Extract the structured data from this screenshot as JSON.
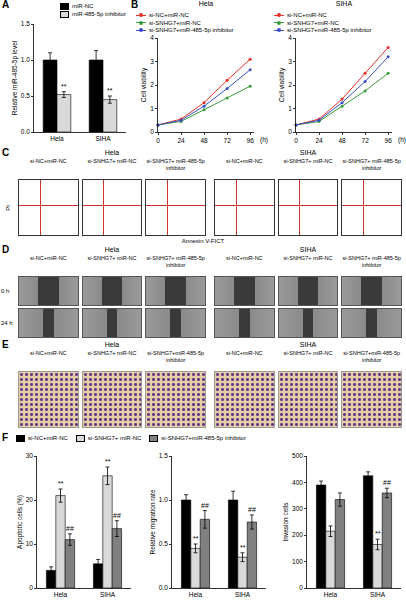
{
  "chart_data": [
    {
      "panel": "A",
      "type": "bar",
      "categories": [
        "Hela",
        "SIHA"
      ],
      "y_label": "Relative miR-485-5p level",
      "ylim": [
        0,
        1.5
      ],
      "yticks": [
        {
          "value": 0,
          "label": "0.0"
        },
        {
          "value": 0.5,
          "label": "0.5"
        },
        {
          "value": 1,
          "label": "1.0"
        },
        {
          "value": 1.5,
          "label": "1.5"
        }
      ],
      "grid": false,
      "legend": "top right",
      "series": [
        {
          "name": "miR-NC",
          "color": "#000000",
          "values": [
            1.0,
            1.0
          ],
          "errors": [
            0.1,
            0.13
          ],
          "annotations": [
            null,
            null
          ]
        },
        {
          "name": "miR-485-5p inhibitor",
          "color": "#d9d9d9",
          "values": [
            0.52,
            0.45
          ],
          "errors": [
            0.04,
            0.05
          ],
          "annotations": [
            "**",
            "**"
          ]
        }
      ]
    },
    {
      "panel": "B",
      "type": "line",
      "title": "Hela",
      "x": [
        0,
        24,
        48,
        72,
        96
      ],
      "x_label": "(h)",
      "y_label": "Cell viability",
      "xlim": [
        0,
        100
      ],
      "xticks": [
        0,
        24,
        48,
        72,
        96
      ],
      "ylim": [
        0,
        4
      ],
      "yticks": [
        0,
        1,
        2,
        3,
        4
      ],
      "grid": false,
      "legend": "top left",
      "marker": "circle",
      "series": [
        {
          "name": "si-NC+miR-NC",
          "color": "#e8302a",
          "values": [
            0.3,
            0.55,
            1.25,
            2.2,
            3.1
          ]
        },
        {
          "name": "si-SNHG7+miR-NC",
          "color": "#3a9b3a",
          "values": [
            0.3,
            0.45,
            0.95,
            1.45,
            1.95
          ]
        },
        {
          "name": "si-SNHG7+miR-485-5p inhibitor",
          "color": "#3b4fc4",
          "values": [
            0.3,
            0.5,
            1.1,
            1.85,
            2.65
          ]
        }
      ]
    },
    {
      "type": "line",
      "title": "SIHA",
      "x": [
        0,
        24,
        48,
        72,
        96
      ],
      "x_label": "(h)",
      "y_label": "Cell viability",
      "xlim": [
        0,
        100
      ],
      "xticks": [
        0,
        24,
        48,
        72,
        96
      ],
      "ylim": [
        0,
        4
      ],
      "yticks": [
        0,
        1,
        2,
        3,
        4
      ],
      "grid": false,
      "legend": "top left",
      "marker": "circle",
      "series": [
        {
          "name": "si-NC+miR-NC",
          "color": "#e8302a",
          "values": [
            0.3,
            0.55,
            1.4,
            2.5,
            3.6
          ]
        },
        {
          "name": "si-SNHG7+miR-NC",
          "color": "#3a9b3a",
          "values": [
            0.3,
            0.45,
            1.1,
            1.75,
            2.5
          ]
        },
        {
          "name": "si-SNHG7+miR-485-5p inhibitor",
          "color": "#3b4fc4",
          "values": [
            0.3,
            0.5,
            1.25,
            2.15,
            3.2
          ]
        }
      ]
    },
    {
      "panel": "F",
      "type": "bar",
      "categories": [
        "Hela",
        "SIHA"
      ],
      "grid": false,
      "legend": "top",
      "series": [
        {
          "name": "si-NC+miR-NC",
          "color": "#000000"
        },
        {
          "name": "si-SNHG7+ miR-NC",
          "color": "#d9d9d9"
        },
        {
          "name": "si-SNHG7+miR-485-5p inhibitor",
          "color": "#808080"
        }
      ],
      "subplots": [
        {
          "y_label": "Apoptotic cells (%)",
          "ylim": [
            0,
            30
          ],
          "yticks": [
            0,
            10,
            20,
            30
          ],
          "values": [
            [
              4,
              5.5
            ],
            [
              21,
              25.5
            ],
            [
              11,
              13.5
            ]
          ],
          "errors": [
            [
              0.8,
              1
            ],
            [
              1.5,
              2
            ],
            [
              1.3,
              1.8
            ]
          ],
          "annotations": [
            [
              null,
              null
            ],
            [
              "**",
              "**"
            ],
            [
              "##",
              "##"
            ]
          ]
        },
        {
          "y_label": "Relative migration rate",
          "ylim": [
            0,
            1.5
          ],
          "yticks": [
            {
              "value": 0,
              "label": "0.0"
            },
            {
              "value": 0.5,
              "label": "0.5"
            },
            {
              "value": 1,
              "label": "1.0"
            },
            {
              "value": 1.5,
              "label": "1.5"
            }
          ],
          "values": [
            [
              1.0,
              1.0
            ],
            [
              0.45,
              0.35
            ],
            [
              0.78,
              0.75
            ]
          ],
          "errors": [
            [
              0.06,
              0.1
            ],
            [
              0.05,
              0.05
            ],
            [
              0.1,
              0.08
            ]
          ],
          "annotations": [
            [
              null,
              null
            ],
            [
              "**",
              "**"
            ],
            [
              "##",
              "##"
            ]
          ]
        },
        {
          "y_label": "Invasion cells",
          "ylim": [
            0,
            500
          ],
          "yticks": [
            0,
            100,
            200,
            300,
            400,
            500
          ],
          "values": [
            [
              390,
              425
            ],
            [
              215,
              165
            ],
            [
              335,
              360
            ]
          ],
          "errors": [
            [
              15,
              15
            ],
            [
              20,
              20
            ],
            [
              25,
              18
            ]
          ],
          "annotations": [
            [
              null,
              null
            ],
            [
              null,
              "**"
            ],
            [
              null,
              "##"
            ]
          ]
        }
      ]
    }
  ],
  "image_panels": [
    {
      "panel": "C",
      "type": "flow_cytometry",
      "y_label": "PI",
      "x_label": "Annexin V-FICT",
      "groups": [
        {
          "title": "Hela",
          "columns": [
            "si-NC+miR-NC",
            "si-SNHG7+ miR-NC",
            "si-SNHG7+ miR-485-5p inhibitor"
          ]
        },
        {
          "title": "SIHA",
          "columns": [
            "si-NC+miR-NC",
            "si-SNHG7+ miR-NC",
            "si-SNHG7+ miR-485-5p inhibitor"
          ]
        }
      ]
    },
    {
      "panel": "D",
      "type": "wound_healing",
      "rows": [
        "0 h",
        "24 h"
      ],
      "groups": [
        {
          "title": "Hela",
          "columns": [
            "si-NC+miR-NC",
            "si-SNHG7+ miR-NC",
            "si-SNHG7+ miR-485-5p inhibitor"
          ]
        },
        {
          "title": "SIHA",
          "columns": [
            "si-NC+miR-NC",
            "si-SNHG7+ miR-NC",
            "si-SNHG7+ miR-485-5p inhibitor"
          ]
        }
      ]
    },
    {
      "panel": "E",
      "type": "transwell",
      "groups": [
        {
          "title": "Hela",
          "columns": [
            "si-NC+miR-NC",
            "si-SNHG7+ miR-NC",
            "si-SNHG7+miR-485-5p inhibitor"
          ]
        },
        {
          "title": "SIHA",
          "columns": [
            "si-NC+miR-NC",
            "si-SNHG7+ miR-NC",
            "si-SNHG7+miR-485-5p inhibitor"
          ]
        }
      ]
    }
  ]
}
